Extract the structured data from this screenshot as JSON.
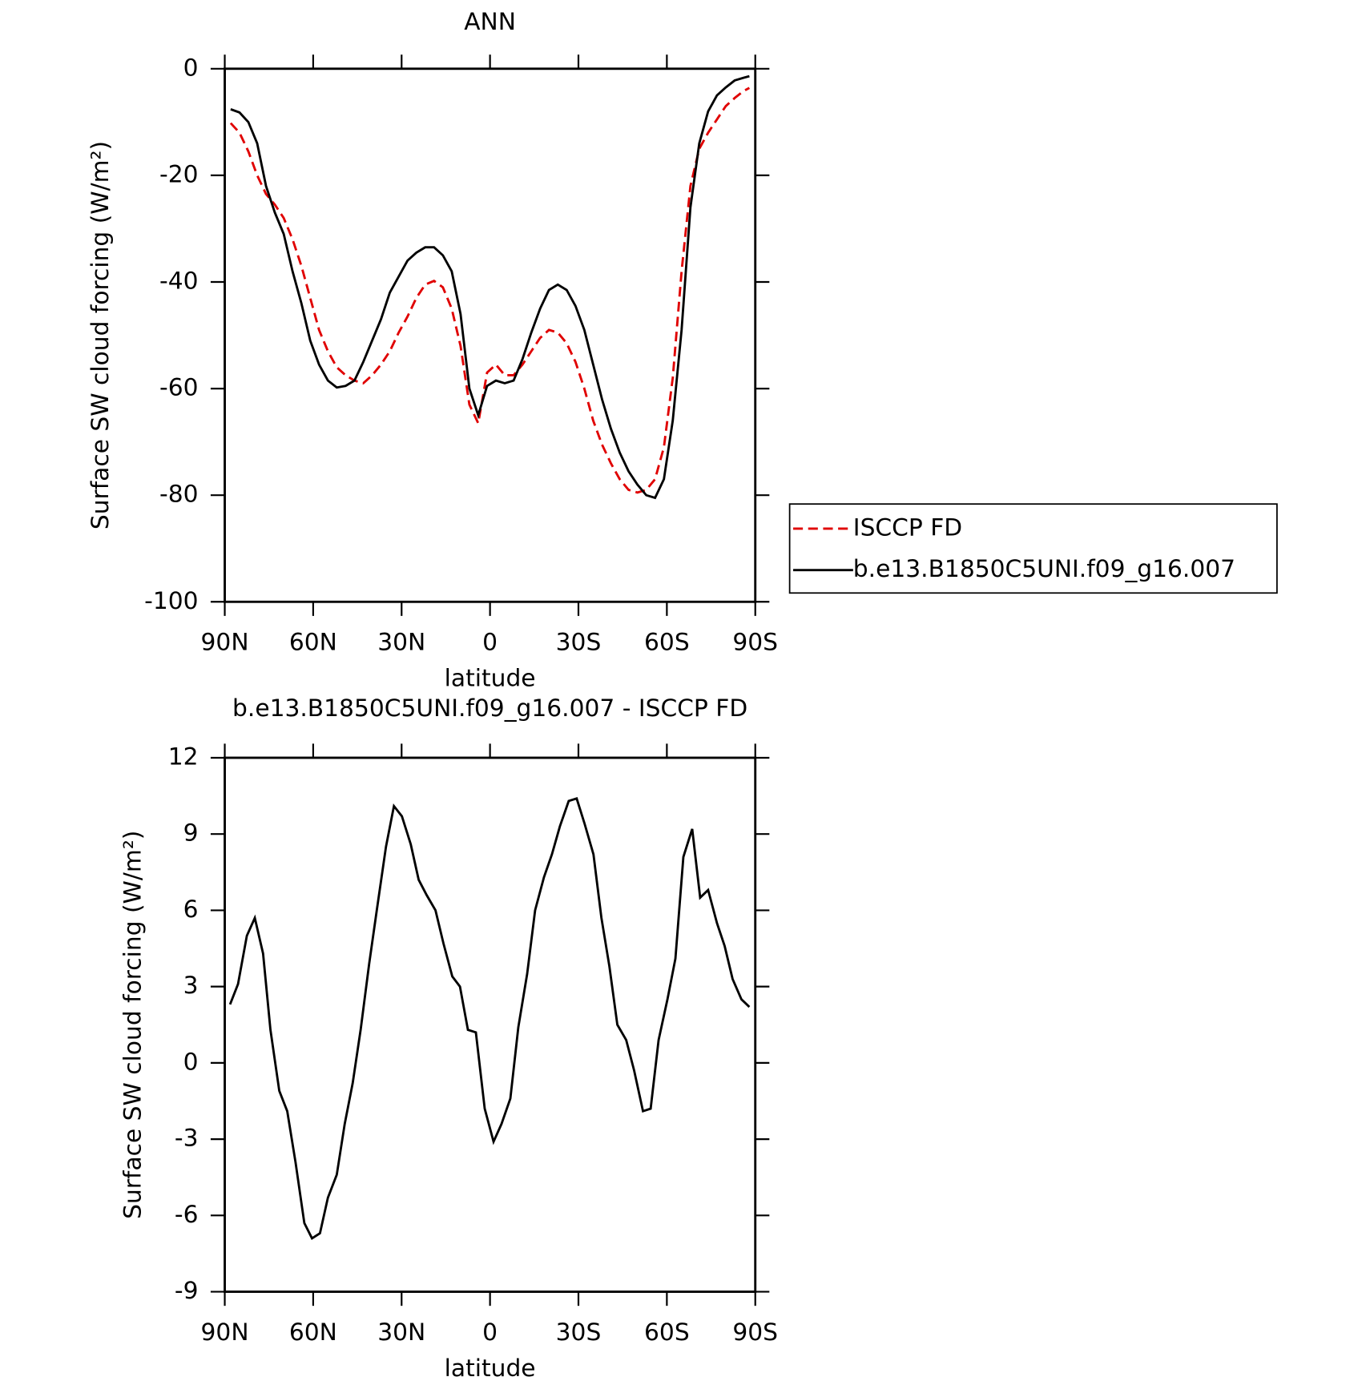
{
  "chart_data": [
    {
      "type": "line",
      "title": "ANN",
      "xlabel": "latitude",
      "ylabel": "Surface SW cloud forcing (W/m²)",
      "x": [
        88,
        85,
        82,
        79,
        76,
        73,
        70,
        67,
        64,
        61,
        58,
        55,
        52,
        49,
        46,
        43,
        40,
        37,
        34,
        31,
        28,
        25,
        22,
        19,
        16,
        13,
        10,
        7,
        4,
        1,
        -2,
        -5,
        -8,
        -11,
        -14,
        -17,
        -20,
        -23,
        -26,
        -29,
        -32,
        -35,
        -38,
        -41,
        -44,
        -47,
        -50,
        -53,
        -56,
        -59,
        -62,
        -65,
        -68,
        -71,
        -74,
        -77,
        -80,
        -83,
        -86,
        -88
      ],
      "series": [
        {
          "name": "ISCCP FD",
          "color": "#e00000",
          "line_style": "dashed",
          "values": [
            -10.2,
            -12,
            -15.5,
            -20,
            -23.5,
            -25.5,
            -28,
            -32,
            -37,
            -43,
            -49,
            -53,
            -56,
            -57.5,
            -58.5,
            -59,
            -57.5,
            -55.5,
            -53,
            -49.5,
            -46.5,
            -43,
            -40.5,
            -39.8,
            -41,
            -45,
            -52,
            -63,
            -66.5,
            -57,
            -55.5,
            -57.5,
            -57.5,
            -55.5,
            -53,
            -50.5,
            -49,
            -49.5,
            -51.5,
            -55,
            -60,
            -66,
            -70.5,
            -74,
            -77,
            -79,
            -79.5,
            -79,
            -77,
            -71,
            -58,
            -38,
            -22,
            -15,
            -12,
            -9.5,
            -7,
            -5.5,
            -4.2,
            -3.6
          ]
        },
        {
          "name": "b.e13.B1850C5UNI.f09_g16.007",
          "color": "#000000",
          "line_style": "solid",
          "values": [
            -7.6,
            -8.2,
            -10,
            -14,
            -22,
            -27,
            -31,
            -38,
            -44,
            -51,
            -55.5,
            -58.5,
            -59.8,
            -59.5,
            -58.5,
            -55,
            -51,
            -47,
            -42,
            -39,
            -36,
            -34.5,
            -33.5,
            -33.5,
            -35,
            -38,
            -46,
            -60,
            -65,
            -59.5,
            -58.5,
            -59,
            -58.5,
            -54.5,
            -49.5,
            -45,
            -41.5,
            -40.5,
            -41.5,
            -44.5,
            -49,
            -55.5,
            -62,
            -67.5,
            -72,
            -75.5,
            -78,
            -80,
            -80.5,
            -77,
            -66,
            -49,
            -26,
            -14,
            -8,
            -5,
            -3.5,
            -2.2,
            -1.7,
            -1.4
          ]
        }
      ],
      "xlim": [
        90,
        -90
      ],
      "xticks": [
        {
          "value": 90,
          "label": "90N"
        },
        {
          "value": 60,
          "label": "60N"
        },
        {
          "value": 30,
          "label": "30N"
        },
        0,
        {
          "value": -30,
          "label": "30S"
        },
        {
          "value": -60,
          "label": "60S"
        },
        {
          "value": -90,
          "label": "90S"
        }
      ],
      "ylim": [
        -100,
        0
      ],
      "yticks": [
        -100,
        -80,
        -60,
        -40,
        -20,
        0
      ],
      "legend": "outside right"
    },
    {
      "type": "line",
      "title": "b.e13.B1850C5UNI.f09_g16.007 - ISCCP FD",
      "xlabel": "latitude",
      "ylabel": "Surface SW cloud forcing (W/m²)",
      "x": [
        88.2,
        85.5,
        82.5,
        79.8,
        77,
        74.5,
        71.5,
        68.8,
        66,
        63,
        60.4,
        57.7,
        55,
        52,
        49.3,
        46.6,
        43.9,
        41,
        38.3,
        35.3,
        32.6,
        29.9,
        26.9,
        24.2,
        21.5,
        18.5,
        15.8,
        12.8,
        10.2,
        7.5,
        4.8,
        1.8,
        -1.2,
        -3.9,
        -6.9,
        -9.6,
        -12.6,
        -15.3,
        -18.3,
        -21,
        -23.7,
        -26.7,
        -29.4,
        -32.1,
        -35.1,
        -37.8,
        -40.5,
        -43.2,
        -46.2,
        -48.9,
        -51.9,
        -54.5,
        -57.2,
        -60.2,
        -62.9,
        -65.6,
        -68.6,
        -71.3,
        -74,
        -77,
        -79.6,
        -82.3,
        -85.3,
        -88
      ],
      "values": [
        2.3,
        3.1,
        5.0,
        5.7,
        4.3,
        1.3,
        -1.1,
        -1.9,
        -3.9,
        -6.3,
        -6.9,
        -6.7,
        -5.3,
        -4.4,
        -2.4,
        -0.8,
        1.3,
        3.9,
        6.1,
        8.5,
        10.1,
        9.7,
        8.6,
        7.2,
        6.6,
        6.0,
        4.7,
        3.4,
        3.0,
        1.3,
        1.2,
        -1.8,
        -3.1,
        -2.4,
        -1.4,
        1.4,
        3.5,
        6.0,
        7.3,
        8.2,
        9.3,
        10.3,
        10.4,
        9.4,
        8.2,
        5.7,
        3.8,
        1.5,
        0.9,
        -0.3,
        -1.9,
        -1.8,
        0.9,
        2.5,
        4.1,
        8.1,
        9.2,
        6.5,
        6.8,
        5.5,
        4.6,
        3.3,
        2.5,
        2.2
      ],
      "color": "#000000",
      "xlim": [
        90,
        -90
      ],
      "xticks": [
        {
          "value": 90,
          "label": "90N"
        },
        {
          "value": 60,
          "label": "60N"
        },
        {
          "value": 30,
          "label": "30N"
        },
        0,
        {
          "value": -30,
          "label": "30S"
        },
        {
          "value": -60,
          "label": "60S"
        },
        {
          "value": -90,
          "label": "90S"
        }
      ],
      "ylim": [
        -9,
        12
      ],
      "yticks": [
        -9,
        -6,
        -3,
        0,
        3,
        6,
        9,
        12
      ]
    }
  ]
}
